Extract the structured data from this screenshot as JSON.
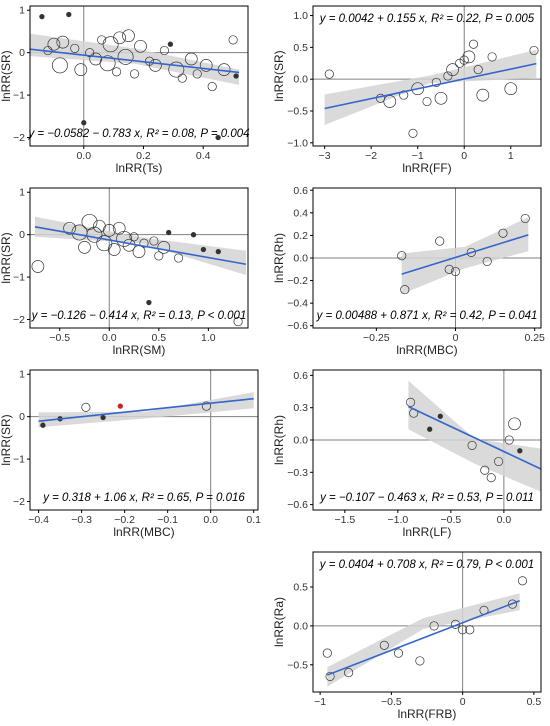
{
  "colors": {
    "line": "#3366cc",
    "band": "#d3d3d3",
    "frame": "#000000",
    "ref": "#808080",
    "point": "#333333",
    "red_point": "#cc2222"
  },
  "chart_data": [
    {
      "id": "ts",
      "type": "scatter",
      "xlabel": "lnRR(Ts)",
      "ylabel": "lnRR(SR)",
      "equation": "y = −0.0582 − 0.783 x,  R² = 0.08,  P = 0.004",
      "xlim": [
        -0.18,
        0.55
      ],
      "ylim": [
        -2.2,
        1.1
      ],
      "xticks": [
        0.0,
        0.2,
        0.4
      ],
      "xtick_labels": [
        "0.0",
        "0.2",
        "0.4"
      ],
      "yticks": [
        -2,
        -1,
        0,
        1
      ],
      "ytick_labels": [
        "−2",
        "−1",
        "0",
        "1"
      ],
      "vline": 0,
      "hline": 0,
      "fit": {
        "intercept": -0.0582,
        "slope": -0.783,
        "x_range": [
          -0.18,
          0.52
        ]
      },
      "band": {
        "lo": [
          -0.08,
          -0.26,
          -0.76
        ],
        "hi": [
          0.45,
          0.1,
          -0.4
        ]
      },
      "points": [
        {
          "x": -0.14,
          "y": 0.85,
          "s": 1
        },
        {
          "x": -0.12,
          "y": 0.05,
          "s": 2
        },
        {
          "x": -0.1,
          "y": 0.2,
          "s": 3
        },
        {
          "x": -0.08,
          "y": -0.3,
          "s": 4
        },
        {
          "x": -0.07,
          "y": 0.25,
          "s": 3
        },
        {
          "x": -0.05,
          "y": 0.9,
          "s": 1
        },
        {
          "x": -0.03,
          "y": 0.1,
          "s": 2
        },
        {
          "x": -0.01,
          "y": -0.4,
          "s": 3
        },
        {
          "x": 0.0,
          "y": -1.65,
          "s": 1
        },
        {
          "x": 0.02,
          "y": 0.0,
          "s": 2
        },
        {
          "x": 0.04,
          "y": -0.15,
          "s": 3
        },
        {
          "x": 0.06,
          "y": 0.3,
          "s": 2
        },
        {
          "x": 0.08,
          "y": -0.25,
          "s": 4
        },
        {
          "x": 0.09,
          "y": 0.2,
          "s": 4
        },
        {
          "x": 0.11,
          "y": -0.45,
          "s": 2
        },
        {
          "x": 0.12,
          "y": 0.35,
          "s": 3
        },
        {
          "x": 0.14,
          "y": -0.1,
          "s": 4
        },
        {
          "x": 0.15,
          "y": 0.4,
          "s": 3
        },
        {
          "x": 0.17,
          "y": -0.5,
          "s": 2
        },
        {
          "x": 0.19,
          "y": 0.15,
          "s": 3
        },
        {
          "x": 0.22,
          "y": -0.2,
          "s": 2
        },
        {
          "x": 0.24,
          "y": -0.3,
          "s": 3
        },
        {
          "x": 0.27,
          "y": 0.05,
          "s": 2
        },
        {
          "x": 0.29,
          "y": 0.2,
          "s": 1
        },
        {
          "x": 0.31,
          "y": -0.4,
          "s": 4
        },
        {
          "x": 0.33,
          "y": -0.6,
          "s": 2
        },
        {
          "x": 0.36,
          "y": -0.15,
          "s": 3
        },
        {
          "x": 0.38,
          "y": -0.5,
          "s": 2
        },
        {
          "x": 0.41,
          "y": -0.3,
          "s": 3
        },
        {
          "x": 0.43,
          "y": -0.8,
          "s": 2
        },
        {
          "x": 0.45,
          "y": -2.0,
          "s": 1
        },
        {
          "x": 0.47,
          "y": -0.4,
          "s": 3
        },
        {
          "x": 0.5,
          "y": 0.3,
          "s": 2
        },
        {
          "x": 0.51,
          "y": -0.55,
          "s": 1
        }
      ]
    },
    {
      "id": "ff",
      "type": "scatter",
      "xlabel": "lnRR(FF)",
      "ylabel": "lnRR(SR)",
      "equation": "y = 0.0042 + 0.155 x,  R² = 0.22,  P = 0.005",
      "xlim": [
        -3.25,
        1.65
      ],
      "ylim": [
        -1.05,
        1.15
      ],
      "xticks": [
        -3,
        -2,
        -1,
        0,
        1
      ],
      "xtick_labels": [
        "−3",
        "−2",
        "−1",
        "0",
        "1"
      ],
      "yticks": [
        -1,
        -0.5,
        0,
        0.5,
        1
      ],
      "ytick_labels": [
        "−1.0",
        "−0.5",
        "0.0",
        "0.5",
        "1.0"
      ],
      "vline": 0,
      "hline": 0,
      "fit": {
        "intercept": 0.0042,
        "slope": 0.155,
        "x_range": [
          -3.0,
          1.55
        ]
      },
      "band": {
        "lo": [
          -0.72,
          -0.06,
          0.02
        ],
        "hi": [
          -0.24,
          0.06,
          0.46
        ]
      },
      "points": [
        {
          "x": -2.9,
          "y": 0.08,
          "s": 2
        },
        {
          "x": -1.8,
          "y": -0.3,
          "s": 2
        },
        {
          "x": -1.6,
          "y": -0.35,
          "s": 3
        },
        {
          "x": -1.3,
          "y": -0.25,
          "s": 2
        },
        {
          "x": -1.1,
          "y": -0.85,
          "s": 2
        },
        {
          "x": -1.0,
          "y": -0.15,
          "s": 3
        },
        {
          "x": -0.8,
          "y": -0.35,
          "s": 2
        },
        {
          "x": -0.6,
          "y": -0.05,
          "s": 2
        },
        {
          "x": -0.5,
          "y": -0.3,
          "s": 3
        },
        {
          "x": -0.35,
          "y": 0.05,
          "s": 2
        },
        {
          "x": -0.25,
          "y": 0.15,
          "s": 3
        },
        {
          "x": -0.1,
          "y": 0.25,
          "s": 2
        },
        {
          "x": 0.0,
          "y": 0.3,
          "s": 2
        },
        {
          "x": 0.1,
          "y": 0.35,
          "s": 3
        },
        {
          "x": 0.2,
          "y": 0.55,
          "s": 2
        },
        {
          "x": 0.3,
          "y": 0.15,
          "s": 2
        },
        {
          "x": 0.4,
          "y": -0.25,
          "s": 3
        },
        {
          "x": 0.6,
          "y": 0.35,
          "s": 2
        },
        {
          "x": 1.0,
          "y": -0.15,
          "s": 3
        },
        {
          "x": 1.5,
          "y": 0.45,
          "s": 2
        }
      ]
    },
    {
      "id": "sm",
      "type": "scatter",
      "xlabel": "lnRR(SM)",
      "ylabel": "lnRR(SR)",
      "equation": "y = −0.126 − 0.414 x,  R² = 0.13,  P < 0.001",
      "xlim": [
        -0.8,
        1.4
      ],
      "ylim": [
        -2.2,
        1.1
      ],
      "xticks": [
        -0.5,
        0,
        0.5,
        1
      ],
      "xtick_labels": [
        "−0.5",
        "0.0",
        "0.5",
        "1.0"
      ],
      "yticks": [
        -2,
        -1,
        0,
        1
      ],
      "ytick_labels": [
        "−2",
        "−1",
        "0",
        "1"
      ],
      "vline": 0,
      "hline": 0,
      "fit": {
        "intercept": -0.126,
        "slope": -0.414,
        "x_range": [
          -0.75,
          1.38
        ]
      },
      "band": {
        "lo": [
          -0.05,
          -0.2,
          -0.95
        ],
        "hi": [
          0.42,
          -0.06,
          -0.38
        ]
      },
      "points": [
        {
          "x": -0.72,
          "y": -0.75,
          "s": 3
        },
        {
          "x": -0.4,
          "y": 0.15,
          "s": 3
        },
        {
          "x": -0.3,
          "y": 0.05,
          "s": 4
        },
        {
          "x": -0.25,
          "y": -0.3,
          "s": 3
        },
        {
          "x": -0.2,
          "y": 0.3,
          "s": 4
        },
        {
          "x": -0.15,
          "y": 0.0,
          "s": 4
        },
        {
          "x": -0.1,
          "y": 0.2,
          "s": 3
        },
        {
          "x": -0.05,
          "y": -0.2,
          "s": 4
        },
        {
          "x": 0.0,
          "y": 0.1,
          "s": 3
        },
        {
          "x": 0.05,
          "y": -0.35,
          "s": 3
        },
        {
          "x": 0.1,
          "y": 0.15,
          "s": 3
        },
        {
          "x": 0.15,
          "y": -0.1,
          "s": 4
        },
        {
          "x": 0.2,
          "y": -0.25,
          "s": 3
        },
        {
          "x": 0.25,
          "y": -0.05,
          "s": 2
        },
        {
          "x": 0.3,
          "y": -0.4,
          "s": 3
        },
        {
          "x": 0.35,
          "y": -0.2,
          "s": 2
        },
        {
          "x": 0.4,
          "y": -1.6,
          "s": 1
        },
        {
          "x": 0.45,
          "y": -0.15,
          "s": 2
        },
        {
          "x": 0.5,
          "y": -0.5,
          "s": 2
        },
        {
          "x": 0.55,
          "y": -0.3,
          "s": 3
        },
        {
          "x": 0.6,
          "y": 0.05,
          "s": 1
        },
        {
          "x": 0.7,
          "y": -0.55,
          "s": 2
        },
        {
          "x": 0.85,
          "y": 0.0,
          "s": 1
        },
        {
          "x": 0.95,
          "y": -0.35,
          "s": 1
        },
        {
          "x": 1.1,
          "y": -0.4,
          "s": 1
        },
        {
          "x": 1.3,
          "y": -2.05,
          "s": 2
        }
      ]
    },
    {
      "id": "mbc_rh",
      "type": "scatter",
      "xlabel": "lnRR(MBC)",
      "ylabel": "lnRR(Rh)",
      "equation": "y = 0.00488 + 0.871 x,  R² = 0.42,  P = 0.041",
      "xlim": [
        -0.45,
        0.27
      ],
      "ylim": [
        -0.62,
        0.62
      ],
      "xticks": [
        -0.25,
        0,
        0.25
      ],
      "xtick_labels": [
        "−0.25",
        "0",
        "0.25"
      ],
      "yticks": [
        -0.6,
        -0.4,
        -0.2,
        0,
        0.2,
        0.4,
        0.6
      ],
      "ytick_labels": [
        "−0.6",
        "−0.4",
        "−0.2",
        "0.0",
        "0.2",
        "0.4",
        "0.6"
      ],
      "vline": 0,
      "hline": 0,
      "fit": {
        "intercept": 0.00488,
        "slope": 0.871,
        "x_range": [
          -0.17,
          0.23
        ]
      },
      "band": {
        "lo": [
          -0.32,
          -0.09,
          0.06
        ],
        "hi": [
          0.04,
          0.1,
          0.36
        ]
      },
      "points": [
        {
          "x": -0.17,
          "y": 0.02,
          "s": 2
        },
        {
          "x": -0.16,
          "y": -0.28,
          "s": 2
        },
        {
          "x": -0.05,
          "y": 0.15,
          "s": 2
        },
        {
          "x": -0.02,
          "y": -0.1,
          "s": 2
        },
        {
          "x": 0.0,
          "y": -0.12,
          "s": 2
        },
        {
          "x": 0.05,
          "y": 0.05,
          "s": 2
        },
        {
          "x": 0.1,
          "y": -0.03,
          "s": 2
        },
        {
          "x": 0.15,
          "y": 0.22,
          "s": 2
        },
        {
          "x": 0.22,
          "y": 0.35,
          "s": 2
        }
      ]
    },
    {
      "id": "mbc_sr",
      "type": "scatter",
      "xlabel": "lnRR(MBC)",
      "ylabel": "lnRR(SR)",
      "equation": "y = 0.318 + 1.06 x,  R² = 0.65,  P = 0.016",
      "xlim": [
        -0.42,
        0.11
      ],
      "ylim": [
        -2.2,
        1.1
      ],
      "xticks": [
        -0.4,
        -0.3,
        -0.2,
        -0.1,
        0,
        0.1
      ],
      "xtick_labels": [
        "−0.4",
        "−0.3",
        "−0.2",
        "−0.1",
        "0.0",
        "0.1"
      ],
      "yticks": [
        -2,
        -1,
        0,
        1
      ],
      "ytick_labels": [
        "−2",
        "−1",
        "0",
        "1"
      ],
      "vline": 0,
      "hline": 0,
      "fit": {
        "intercept": 0.318,
        "slope": 1.06,
        "x_range": [
          -0.4,
          0.1
        ]
      },
      "band": {
        "lo": [
          -0.25,
          -0.04,
          0.2
        ],
        "hi": [
          0.1,
          0.12,
          0.58
        ]
      },
      "points": [
        {
          "x": -0.39,
          "y": -0.2,
          "s": 1
        },
        {
          "x": -0.35,
          "y": -0.05,
          "s": 1
        },
        {
          "x": -0.29,
          "y": 0.22,
          "s": 2
        },
        {
          "x": -0.25,
          "y": -0.02,
          "s": 1
        },
        {
          "x": -0.21,
          "y": 0.25,
          "s": 1,
          "red": true
        },
        {
          "x": -0.01,
          "y": 0.25,
          "s": 2
        }
      ]
    },
    {
      "id": "lf",
      "type": "scatter",
      "xlabel": "lnRR(LF)",
      "ylabel": "lnRR(Rh)",
      "equation": "y = −0.107 − 0.463 x,  R² = 0.53,  P = 0.011",
      "xlim": [
        -1.8,
        0.35
      ],
      "ylim": [
        -0.65,
        0.65
      ],
      "xticks": [
        -1.5,
        -1,
        -0.5,
        0
      ],
      "xtick_labels": [
        "−1.5",
        "−1.0",
        "−0.5",
        "0.0"
      ],
      "yticks": [
        -0.6,
        -0.3,
        0,
        0.3,
        0.6
      ],
      "ytick_labels": [
        "−0.6",
        "−0.3",
        "0.0",
        "0.3",
        "0.6"
      ],
      "vline": 0,
      "hline": 0,
      "fit": {
        "intercept": -0.107,
        "slope": -0.463,
        "x_range": [
          -0.9,
          0.35
        ]
      },
      "band": {
        "lo": [
          0.1,
          -0.22,
          -0.48
        ],
        "hi": [
          0.55,
          0.01,
          -0.08
        ]
      },
      "points": [
        {
          "x": -0.88,
          "y": 0.35,
          "s": 2
        },
        {
          "x": -0.85,
          "y": 0.25,
          "s": 2
        },
        {
          "x": -0.7,
          "y": 0.1,
          "s": 1
        },
        {
          "x": -0.6,
          "y": 0.22,
          "s": 1
        },
        {
          "x": -0.3,
          "y": -0.05,
          "s": 2
        },
        {
          "x": -0.18,
          "y": -0.28,
          "s": 2
        },
        {
          "x": -0.12,
          "y": -0.35,
          "s": 2
        },
        {
          "x": -0.05,
          "y": -0.2,
          "s": 2
        },
        {
          "x": 0.05,
          "y": 0.0,
          "s": 2
        },
        {
          "x": 0.1,
          "y": 0.15,
          "s": 3
        },
        {
          "x": 0.15,
          "y": -0.1,
          "s": 1
        }
      ]
    },
    {
      "id": "frb",
      "type": "scatter",
      "xlabel": "lnRR(FRB)",
      "ylabel": "lnRR(Ra)",
      "equation": "y = 0.0404 + 0.708 x,  R² = 0.79,  P < 0.001",
      "xlim": [
        -1.05,
        0.55
      ],
      "ylim": [
        -0.85,
        0.95
      ],
      "xticks": [
        -1,
        -0.5,
        0,
        0.5
      ],
      "xtick_labels": [
        "−1",
        "−0.5",
        "0",
        "0.5"
      ],
      "yticks": [
        -0.5,
        0,
        0.5
      ],
      "ytick_labels": [
        "−0.5",
        "0.0",
        "0.5"
      ],
      "vline": 0,
      "hline": 0,
      "fit": {
        "intercept": 0.0404,
        "slope": 0.708,
        "x_range": [
          -0.95,
          0.4
        ]
      },
      "band": {
        "lo": [
          -0.78,
          -0.04,
          0.2
        ],
        "hi": [
          -0.53,
          0.1,
          0.42
        ]
      },
      "points": [
        {
          "x": -0.95,
          "y": -0.35,
          "s": 2
        },
        {
          "x": -0.93,
          "y": -0.65,
          "s": 2
        },
        {
          "x": -0.8,
          "y": -0.6,
          "s": 2
        },
        {
          "x": -0.55,
          "y": -0.25,
          "s": 2
        },
        {
          "x": -0.45,
          "y": -0.35,
          "s": 2
        },
        {
          "x": -0.3,
          "y": -0.45,
          "s": 2
        },
        {
          "x": -0.2,
          "y": 0.0,
          "s": 2
        },
        {
          "x": -0.05,
          "y": 0.02,
          "s": 2
        },
        {
          "x": 0.0,
          "y": -0.05,
          "s": 2
        },
        {
          "x": 0.05,
          "y": -0.05,
          "s": 2
        },
        {
          "x": 0.15,
          "y": 0.2,
          "s": 2
        },
        {
          "x": 0.35,
          "y": 0.28,
          "s": 2
        },
        {
          "x": 0.42,
          "y": 0.58,
          "s": 2
        }
      ]
    }
  ]
}
